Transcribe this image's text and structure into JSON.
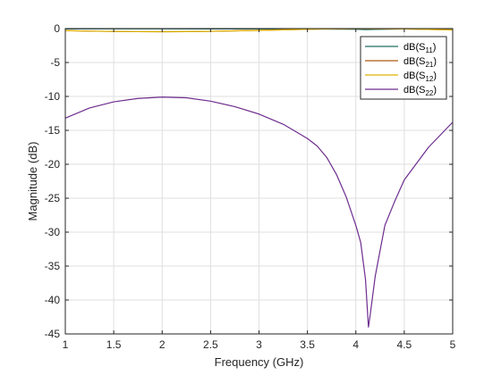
{
  "chart_data": {
    "type": "line",
    "title": "",
    "xlabel": "Frequency (GHz)",
    "ylabel": "Magnitude (dB)",
    "xlim": [
      1,
      5
    ],
    "ylim": [
      -45,
      0
    ],
    "xticks": [
      1,
      1.5,
      2,
      2.5,
      3,
      3.5,
      4,
      4.5,
      5
    ],
    "xtick_labels": [
      "1",
      "1.5",
      "2",
      "2.5",
      "3",
      "3.5",
      "4",
      "4.5",
      "5"
    ],
    "yticks": [
      0,
      -5,
      -10,
      -15,
      -20,
      -25,
      -30,
      -35,
      -40,
      -45
    ],
    "ytick_labels": [
      "0",
      "-5",
      "-10",
      "-15",
      "-20",
      "-25",
      "-30",
      "-35",
      "-40",
      "-45"
    ],
    "grid": true,
    "legend_placement": "top-right",
    "series": [
      {
        "name_main": "dB(S",
        "name_sub": "11",
        "name_end": ")",
        "color": "#1f6e63",
        "x": [
          1,
          1.5,
          2,
          2.5,
          3,
          3.5,
          4,
          4.1,
          4.2,
          4.5,
          5
        ],
        "y": [
          -0.05,
          -0.04,
          -0.03,
          -0.05,
          -0.06,
          -0.05,
          -0.1,
          -0.15,
          -0.12,
          -0.06,
          -0.04
        ]
      },
      {
        "name_main": "dB(S",
        "name_sub": "21",
        "name_end": ")",
        "color": "#b05a10",
        "x": [
          1,
          1.25,
          1.5,
          1.75,
          2,
          2.25,
          2.5,
          2.75,
          3,
          3.25,
          3.5,
          3.75,
          4,
          4.25,
          4.5,
          4.75,
          5
        ],
        "y": [
          -0.3,
          -0.37,
          -0.42,
          -0.45,
          -0.46,
          -0.44,
          -0.4,
          -0.33,
          -0.26,
          -0.18,
          -0.1,
          -0.04,
          -0.01,
          -0.02,
          -0.05,
          -0.12,
          -0.2
        ]
      },
      {
        "name_main": "dB(S",
        "name_sub": "12",
        "name_end": ")",
        "color": "#e0b000",
        "x": [
          1,
          1.25,
          1.5,
          1.75,
          2,
          2.25,
          2.5,
          2.75,
          3,
          3.25,
          3.5,
          3.75,
          4,
          4.25,
          4.5,
          4.75,
          5
        ],
        "y": [
          -0.3,
          -0.37,
          -0.42,
          -0.45,
          -0.46,
          -0.44,
          -0.4,
          -0.33,
          -0.26,
          -0.18,
          -0.1,
          -0.04,
          -0.01,
          -0.02,
          -0.05,
          -0.12,
          -0.2
        ]
      },
      {
        "name_main": "dB(S",
        "name_sub": "22",
        "name_end": ")",
        "color": "#6e2d8f",
        "x": [
          1,
          1.25,
          1.5,
          1.75,
          2,
          2.25,
          2.5,
          2.75,
          3,
          3.25,
          3.5,
          3.6,
          3.7,
          3.8,
          3.9,
          4,
          4.05,
          4.1,
          4.13,
          4.15,
          4.2,
          4.3,
          4.4,
          4.5,
          4.75,
          5
        ],
        "y": [
          -13.2,
          -11.7,
          -10.8,
          -10.3,
          -10.1,
          -10.2,
          -10.7,
          -11.5,
          -12.6,
          -14.1,
          -16.2,
          -17.3,
          -19.0,
          -21.5,
          -24.8,
          -29.0,
          -31.5,
          -37.0,
          -44.0,
          -42.0,
          -36.5,
          -29.0,
          -25.5,
          -22.3,
          -17.5,
          -13.8
        ]
      }
    ]
  }
}
